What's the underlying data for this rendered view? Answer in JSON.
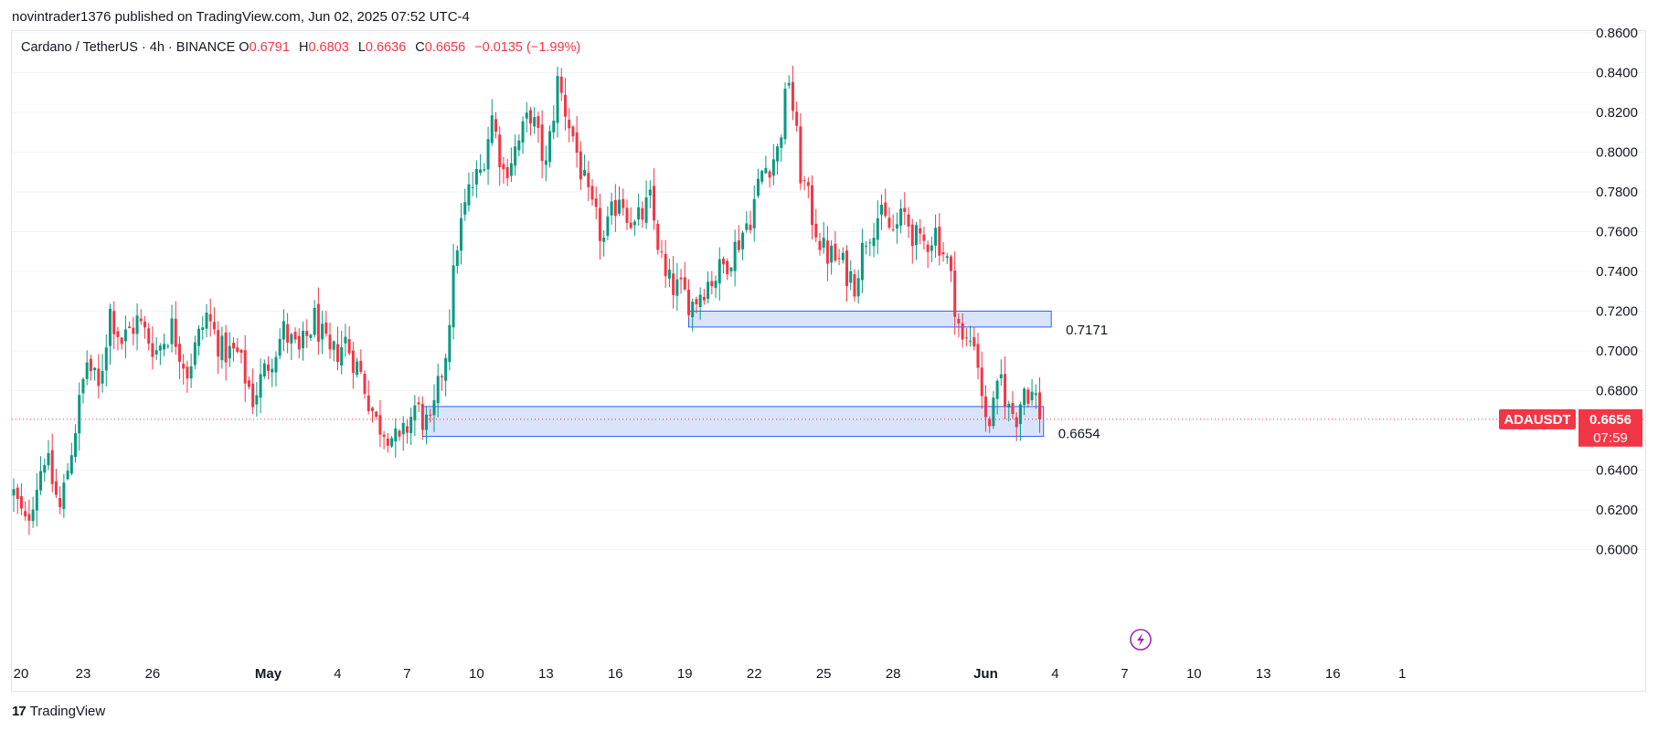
{
  "header": {
    "published": "novintrader1376 published on TradingView.com, Jun 02, 2025 07:52 UTC-4"
  },
  "legend": {
    "symbol": "Cardano / TetherUS · 4h · BINANCE",
    "open_label": "O",
    "open": "0.6791",
    "high_label": "H",
    "high": "0.6803",
    "low_label": "L",
    "low": "0.6636",
    "close_label": "C",
    "close": "0.6656",
    "change": "−0.0135 (−1.99%)"
  },
  "price_tag": {
    "ticker": "ADAUSDT",
    "price": "0.6656",
    "countdown": "07:59"
  },
  "zone_labels": {
    "upper": "0.7171",
    "lower": "0.6654"
  },
  "footer": {
    "logo_mark": "17",
    "brand": "TradingView"
  },
  "colors": {
    "up": "#089981",
    "down": "#f23645",
    "zone_fill": "#d2def9",
    "zone_border": "#2962ff",
    "price_line": "#f23645",
    "lightning": "#9c27b0"
  },
  "chart_data": {
    "type": "candlestick",
    "title": "Cardano / TetherUS · 4h · BINANCE",
    "y_ticks": [
      "0.6000",
      "0.6200",
      "0.6400",
      "0.6800",
      "0.7000",
      "0.7200",
      "0.7400",
      "0.7600",
      "0.7800",
      "0.8000",
      "0.8200",
      "0.8400",
      "0.8600"
    ],
    "ylim": [
      0.592,
      0.862
    ],
    "x_ticks": [
      {
        "label": "20",
        "bar": 0
      },
      {
        "label": "23",
        "bar": 18
      },
      {
        "label": "26",
        "bar": 36
      },
      {
        "label": "May",
        "bar": 66
      },
      {
        "label": "4",
        "bar": 84
      },
      {
        "label": "7",
        "bar": 102
      },
      {
        "label": "10",
        "bar": 120
      },
      {
        "label": "13",
        "bar": 138
      },
      {
        "label": "16",
        "bar": 156
      },
      {
        "label": "19",
        "bar": 174
      },
      {
        "label": "22",
        "bar": 192
      },
      {
        "label": "25",
        "bar": 210
      },
      {
        "label": "28",
        "bar": 228
      },
      {
        "label": "Jun",
        "bar": 252
      },
      {
        "label": "4",
        "bar": 270
      },
      {
        "label": "7",
        "bar": 288
      },
      {
        "label": "10",
        "bar": 306
      },
      {
        "label": "13",
        "bar": 324
      },
      {
        "label": "16",
        "bar": 342
      },
      {
        "label": "1",
        "bar": 360
      }
    ],
    "anchors": [
      [
        0,
        0.628
      ],
      [
        3,
        0.612
      ],
      [
        8,
        0.648
      ],
      [
        12,
        0.62
      ],
      [
        16,
        0.662
      ],
      [
        19,
        0.695
      ],
      [
        22,
        0.68
      ],
      [
        25,
        0.72
      ],
      [
        28,
        0.705
      ],
      [
        32,
        0.715
      ],
      [
        37,
        0.7
      ],
      [
        41,
        0.712
      ],
      [
        45,
        0.69
      ],
      [
        50,
        0.718
      ],
      [
        54,
        0.7
      ],
      [
        58,
        0.698
      ],
      [
        62,
        0.676
      ],
      [
        66,
        0.694
      ],
      [
        70,
        0.71
      ],
      [
        74,
        0.698
      ],
      [
        78,
        0.716
      ],
      [
        82,
        0.696
      ],
      [
        86,
        0.705
      ],
      [
        90,
        0.688
      ],
      [
        94,
        0.664
      ],
      [
        97,
        0.66
      ],
      [
        100,
        0.652
      ],
      [
        104,
        0.672
      ],
      [
        108,
        0.66
      ],
      [
        112,
        0.7
      ],
      [
        115,
        0.755
      ],
      [
        118,
        0.78
      ],
      [
        121,
        0.79
      ],
      [
        124,
        0.818
      ],
      [
        127,
        0.79
      ],
      [
        131,
        0.805
      ],
      [
        134,
        0.82
      ],
      [
        138,
        0.792
      ],
      [
        141,
        0.835
      ],
      [
        145,
        0.808
      ],
      [
        149,
        0.775
      ],
      [
        153,
        0.755
      ],
      [
        157,
        0.78
      ],
      [
        161,
        0.762
      ],
      [
        165,
        0.775
      ],
      [
        169,
        0.735
      ],
      [
        173,
        0.73
      ],
      [
        176,
        0.724
      ],
      [
        179,
        0.733
      ],
      [
        183,
        0.74
      ],
      [
        187,
        0.752
      ],
      [
        191,
        0.768
      ],
      [
        194,
        0.79
      ],
      [
        198,
        0.8
      ],
      [
        201,
        0.838
      ],
      [
        204,
        0.79
      ],
      [
        207,
        0.768
      ],
      [
        210,
        0.75
      ],
      [
        214,
        0.745
      ],
      [
        218,
        0.735
      ],
      [
        221,
        0.758
      ],
      [
        224,
        0.768
      ],
      [
        228,
        0.76
      ],
      [
        231,
        0.768
      ],
      [
        235,
        0.752
      ],
      [
        239,
        0.76
      ],
      [
        242,
        0.745
      ],
      [
        244,
        0.725
      ],
      [
        246,
        0.703
      ],
      [
        249,
        0.707
      ],
      [
        251,
        0.68
      ],
      [
        252,
        0.662
      ],
      [
        254,
        0.67
      ],
      [
        256,
        0.686
      ],
      [
        258,
        0.67
      ],
      [
        260,
        0.668
      ],
      [
        262,
        0.682
      ],
      [
        265,
        0.676
      ],
      [
        266,
        0.6656
      ]
    ],
    "last_close": 0.6656,
    "zones": [
      {
        "from_bar": 175,
        "to_bar": 269,
        "low": 0.712,
        "high": 0.72,
        "label": "0.7171"
      },
      {
        "from_bar": 106,
        "to_bar": 267,
        "low": 0.657,
        "high": 0.672,
        "label": "0.6654"
      }
    ]
  }
}
